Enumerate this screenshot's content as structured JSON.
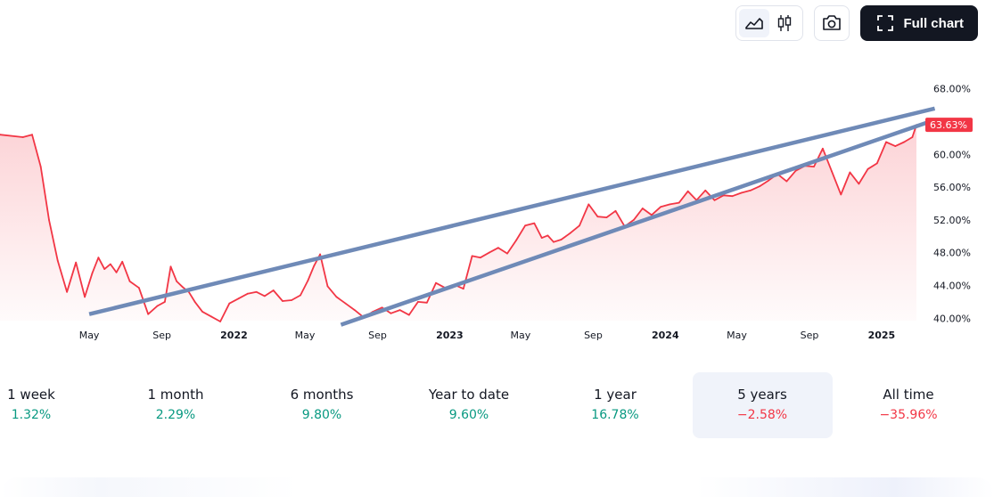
{
  "toolbar": {
    "full_chart_label": "Full chart"
  },
  "periods": [
    {
      "label": "1 week",
      "value": "1.32%",
      "trend": "pos"
    },
    {
      "label": "1 month",
      "value": "2.29%",
      "trend": "pos"
    },
    {
      "label": "6 months",
      "value": "9.80%",
      "trend": "pos"
    },
    {
      "label": "Year to date",
      "value": "9.60%",
      "trend": "pos"
    },
    {
      "label": "1 year",
      "value": "16.78%",
      "trend": "pos"
    },
    {
      "label": "5 years",
      "value": "−2.58%",
      "trend": "neg",
      "active": true
    },
    {
      "label": "All time",
      "value": "−35.96%",
      "trend": "neg"
    }
  ],
  "colors": {
    "line": "#f23645",
    "fill": "#f23645",
    "trendline": "#6f8ab7",
    "positive": "#089981",
    "negative": "#f23645"
  },
  "chart_data": {
    "type": "area",
    "y_unit": "%",
    "ylim": [
      39,
      70
    ],
    "y_ticks": [
      "68.00%",
      "64.00%",
      "60.00%",
      "56.00%",
      "52.00%",
      "48.00%",
      "44.00%",
      "40.00%"
    ],
    "y_tick_values": [
      68,
      64,
      60,
      56,
      52,
      48,
      44,
      40
    ],
    "x_ticks": [
      {
        "label": "May",
        "date": "2021-05",
        "bold": false
      },
      {
        "label": "Sep",
        "date": "2021-09",
        "bold": false
      },
      {
        "label": "2022",
        "date": "2022-01",
        "bold": true
      },
      {
        "label": "May",
        "date": "2022-05",
        "bold": false
      },
      {
        "label": "Sep",
        "date": "2022-09",
        "bold": false
      },
      {
        "label": "2023",
        "date": "2023-01",
        "bold": true
      },
      {
        "label": "May",
        "date": "2023-05",
        "bold": false
      },
      {
        "label": "Sep",
        "date": "2023-09",
        "bold": false
      },
      {
        "label": "2024",
        "date": "2024-01",
        "bold": true
      },
      {
        "label": "May",
        "date": "2024-05",
        "bold": false
      },
      {
        "label": "Sep",
        "date": "2024-09",
        "bold": false
      },
      {
        "label": "2025",
        "date": "2025-01",
        "bold": true
      }
    ],
    "last_value_label": "63.63%",
    "series": [
      {
        "x": [
          "2020-12",
          "2021-01",
          "2021-01",
          "2021-02",
          "2021-02",
          "2021-03",
          "2021-03",
          "2021-04",
          "2021-04",
          "2021-05",
          "2021-05",
          "2021-05",
          "2021-06",
          "2021-06",
          "2021-06",
          "2021-07",
          "2021-07",
          "2021-08",
          "2021-08",
          "2021-09",
          "2021-09",
          "2021-09",
          "2021-10",
          "2021-10",
          "2021-10",
          "2021-11",
          "2021-11",
          "2021-12",
          "2021-12",
          "2022-01",
          "2022-01",
          "2022-02",
          "2022-02",
          "2022-03",
          "2022-03",
          "2022-04",
          "2022-04",
          "2022-05",
          "2022-05",
          "2022-05",
          "2022-06",
          "2022-06",
          "2022-07",
          "2022-07",
          "2022-08",
          "2022-08",
          "2022-09",
          "2022-09",
          "2022-10",
          "2022-10",
          "2022-11",
          "2022-11",
          "2022-12",
          "2022-12",
          "2023-01",
          "2023-01",
          "2023-02",
          "2023-02",
          "2023-03",
          "2023-03",
          "2023-04",
          "2023-04",
          "2023-05",
          "2023-05",
          "2023-06",
          "2023-06",
          "2023-06",
          "2023-07",
          "2023-07",
          "2023-08",
          "2023-08",
          "2023-09",
          "2023-09",
          "2023-10",
          "2023-10",
          "2023-11",
          "2023-11",
          "2023-12",
          "2023-12",
          "2024-01",
          "2024-01",
          "2024-02",
          "2024-02",
          "2024-03",
          "2024-03",
          "2024-04",
          "2024-04",
          "2024-05",
          "2024-05",
          "2024-06",
          "2024-06",
          "2024-07",
          "2024-07",
          "2024-08",
          "2024-08",
          "2024-09",
          "2024-09",
          "2024-10",
          "2024-10",
          "2024-11",
          "2024-11",
          "2024-12",
          "2024-12",
          "2025-01",
          "2025-01",
          "2025-02",
          "2025-02",
          "2025-03"
        ],
        "values": [
          62.4,
          62.1,
          62.4,
          58.5,
          52.0,
          47.0,
          43.2,
          46.8,
          42.6,
          45.5,
          47.4,
          46.0,
          46.6,
          45.6,
          46.9,
          44.5,
          43.7,
          40.5,
          41.5,
          42.0,
          46.3,
          44.5,
          43.8,
          43.2,
          42.0,
          40.8,
          40.2,
          39.6,
          41.8,
          42.4,
          43.0,
          43.2,
          42.7,
          43.4,
          42.1,
          42.2,
          42.8,
          44.6,
          46.4,
          47.8,
          43.9,
          42.6,
          41.8,
          41.0,
          40.1,
          40.8,
          41.3,
          40.6,
          41.0,
          40.4,
          42.0,
          41.9,
          44.3,
          43.7,
          44.1,
          43.6,
          47.6,
          47.4,
          48.0,
          48.6,
          47.9,
          49.5,
          51.3,
          51.6,
          49.8,
          50.1,
          49.3,
          49.6,
          50.4,
          51.3,
          53.9,
          52.4,
          52.3,
          53.1,
          51.2,
          52.0,
          53.4,
          52.6,
          53.6,
          53.9,
          54.1,
          55.5,
          54.4,
          55.6,
          54.4,
          55.0,
          54.9,
          55.3,
          55.6,
          56.1,
          56.8,
          57.6,
          56.7,
          58.0,
          58.6,
          58.5,
          60.7,
          57.9,
          55.1,
          57.8,
          56.4,
          58.2,
          58.9,
          61.5,
          61.0,
          61.5,
          62.1,
          63.6
        ]
      }
    ],
    "trendlines": [
      {
        "from": [
          "2021-05",
          40.5
        ],
        "to": [
          "2025-04",
          65.6
        ]
      },
      {
        "from": [
          "2022-07",
          39.2
        ],
        "to": [
          "2025-04",
          64.2
        ]
      }
    ]
  }
}
